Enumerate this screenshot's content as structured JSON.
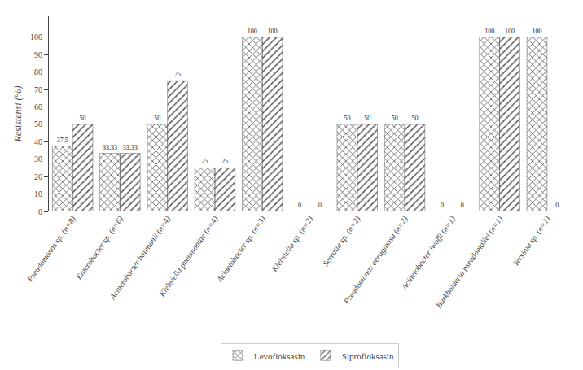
{
  "chart_data": {
    "type": "bar",
    "categories": [
      "Pseudomonas sp. (n=8)",
      "Enterobacter sp. (n=6)",
      "Acinetobacter baumanii (n=4)",
      "Klebsiella pneumoniae (n=4)",
      "Acinetobacter sp. (n=3)",
      "Klebsiella sp. (n=2)",
      "Serratia sp. (n=2)",
      "Pseudomonas aeruginosa (n=2)",
      "Acinetobacter iwoffi (n=1)",
      "Burkholderia pseudomallei (n=1)",
      "Yersinia sp. (n=1)"
    ],
    "series": [
      {
        "name": "Levofloksasin",
        "color": "#E8A020",
        "values": [
          37.5,
          33.33,
          50,
          25,
          100,
          0,
          50,
          50,
          0,
          100,
          100
        ],
        "value_labels": [
          "37,5",
          "33,33",
          "50",
          "25",
          "100",
          "0",
          "50",
          "50",
          "0",
          "100",
          "100"
        ]
      },
      {
        "name": "Siprofloksasin",
        "color": "#2E8B2E",
        "values": [
          50,
          33.33,
          75,
          25,
          100,
          0,
          50,
          50,
          0,
          100,
          0
        ],
        "value_labels": [
          "50",
          "33,33",
          "75",
          "25",
          "100",
          "0",
          "50",
          "50",
          "0",
          "100",
          "0"
        ]
      }
    ],
    "ylabel": "Resistensi (%)",
    "ylim": [
      0,
      112
    ],
    "yticks": [
      0,
      10,
      20,
      30,
      40,
      50,
      60,
      70,
      80,
      90,
      100
    ],
    "grid": false,
    "legend": "bottom",
    "data_labels": true
  }
}
